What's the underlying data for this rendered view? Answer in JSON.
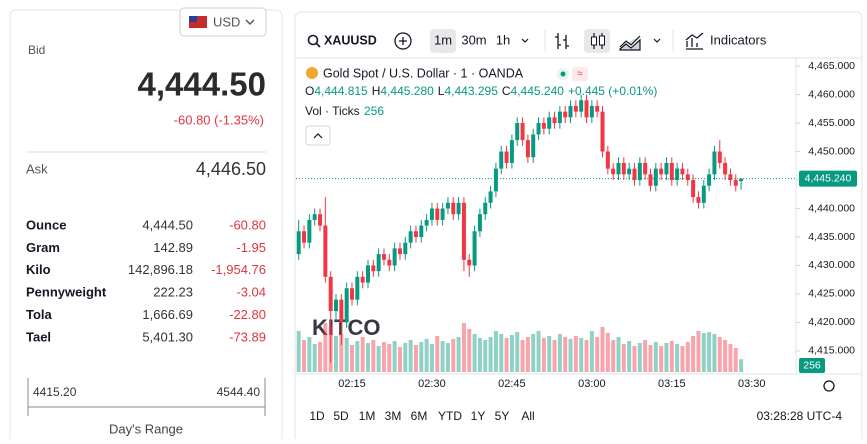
{
  "currency": "USD",
  "bid": {
    "label": "Bid",
    "price": "4,444.50",
    "change": "-60.80 (-1.35%)"
  },
  "ask": {
    "label": "Ask",
    "price": "4,446.50"
  },
  "units": [
    [
      "Ounce",
      "4,444.50",
      "-60.80"
    ],
    [
      "Gram",
      "142.89",
      "-1.95"
    ],
    [
      "Kilo",
      "142,896.18",
      "-1,954.76"
    ],
    [
      "Pennyweight",
      "222.23",
      "-3.04"
    ],
    [
      "Tola",
      "1,666.69",
      "-22.80"
    ],
    [
      "Tael",
      "5,401.30",
      "-73.89"
    ]
  ],
  "day_range": {
    "low": "4415.20",
    "high": "4544.40",
    "label": "Day's Range"
  },
  "toolbar": {
    "symbol": "XAUUSD",
    "intervals": [
      "1m",
      "30m",
      "1h"
    ],
    "indicators": "Indicators"
  },
  "ranges": [
    "1D",
    "5D",
    "1M",
    "3M",
    "6M",
    "YTD",
    "1Y",
    "5Y",
    "All"
  ],
  "clock": "03:28:28 UTC-4",
  "chart_data": {
    "type": "candlestick",
    "title": "Gold Spot / U.S. Dollar · 1 · OANDA",
    "ohlc_labels": [
      [
        "O",
        "4,444.815"
      ],
      [
        "H",
        "4,445.280"
      ],
      [
        "L",
        "4,443.295"
      ],
      [
        "C",
        "4,445.240"
      ]
    ],
    "change": "+0.445 (+0.01%)",
    "volume_title": "Vol · Ticks",
    "watermark": "KITCO",
    "up_color": "#089981",
    "down_color": "#f23645",
    "open": [
      4432,
      4436,
      4434,
      4438,
      4439,
      4437,
      4428,
      4422,
      4424,
      4420,
      4426,
      4424,
      4428,
      4427,
      4430,
      4429,
      4432,
      4431,
      4430,
      4433,
      4432,
      4434,
      4436,
      4435,
      4437,
      4438,
      4440,
      4438,
      4440,
      4441,
      4439,
      4441,
      4431,
      4430,
      4436,
      4439,
      4441,
      4443,
      4447,
      4450,
      4448,
      4452,
      4455,
      4452,
      4449,
      4453,
      4455,
      4454,
      4456,
      4455,
      4457,
      4456,
      4458,
      4457,
      4459,
      4456,
      4458,
      4457,
      4450,
      4447,
      4446,
      4448,
      4446,
      4447,
      4445,
      4448,
      4446,
      4444,
      4447,
      4446,
      4448,
      4445,
      4447,
      4446,
      4445,
      4442,
      4441,
      4444,
      4446,
      4450,
      4448,
      4446,
      4445,
      4444.815
    ],
    "high": [
      4438,
      4437,
      4439,
      4440,
      4440,
      4442,
      4429,
      4425,
      4425,
      4427,
      4427,
      4429,
      4429,
      4431,
      4431,
      4433,
      4433,
      4432,
      4434,
      4434,
      4435,
      4437,
      4437,
      4438,
      4439,
      4441,
      4441,
      4441,
      4442,
      4442,
      4442,
      4442,
      4432,
      4437,
      4440,
      4442,
      4444,
      4448,
      4451,
      4451,
      4453,
      4456,
      4456,
      4453,
      4454,
      4456,
      4456,
      4457,
      4457,
      4458,
      4458,
      4459,
      4459,
      4460,
      4460,
      4459,
      4459,
      4458,
      4451,
      4448,
      4449,
      4449,
      4448,
      4448,
      4449,
      4449,
      4447,
      4448,
      4448,
      4449,
      4449,
      4448,
      4448,
      4447,
      4446,
      4443,
      4445,
      4447,
      4451,
      4452,
      4449,
      4447,
      4446,
      4445.28
    ],
    "low": [
      4431,
      4433,
      4433,
      4437,
      4436,
      4427,
      4413,
      4420,
      4416,
      4419,
      4423,
      4423,
      4426,
      4426,
      4428,
      4428,
      4430,
      4429,
      4429,
      4431,
      4431,
      4433,
      4434,
      4434,
      4436,
      4437,
      4437,
      4437,
      4439,
      4438,
      4438,
      4429,
      4428,
      4429,
      4435,
      4438,
      4440,
      4442,
      4446,
      4447,
      4447,
      4451,
      4451,
      4448,
      4448,
      4452,
      4453,
      4453,
      4454,
      4454,
      4455,
      4455,
      4456,
      4456,
      4455,
      4455,
      4456,
      4449,
      4446,
      4445,
      4445,
      4445,
      4445,
      4444,
      4444,
      4445,
      4443,
      4443,
      4445,
      4445,
      4444,
      4444,
      4445,
      4444,
      4441,
      4440,
      4440,
      4443,
      4445,
      4447,
      4445,
      4444,
      4443,
      4443.295
    ],
    "close": [
      4436,
      4434,
      4438,
      4439,
      4437,
      4428,
      4422,
      4424,
      4420,
      4426,
      4424,
      4428,
      4427,
      4430,
      4429,
      4432,
      4431,
      4430,
      4433,
      4432,
      4434,
      4436,
      4435,
      4437,
      4438,
      4440,
      4438,
      4440,
      4441,
      4439,
      4441,
      4431,
      4430,
      4436,
      4439,
      4441,
      4443,
      4447,
      4450,
      4448,
      4452,
      4455,
      4452,
      4449,
      4453,
      4455,
      4454,
      4456,
      4455,
      4457,
      4456,
      4458,
      4457,
      4459,
      4456,
      4458,
      4457,
      4450,
      4447,
      4446,
      4448,
      4446,
      4447,
      4445,
      4448,
      4446,
      4444,
      4447,
      4446,
      4448,
      4445,
      4447,
      4446,
      4445,
      4442,
      4441,
      4444,
      4446,
      4450,
      4448,
      4446,
      4445,
      4444,
      4445.24
    ],
    "volume": [
      820,
      640,
      700,
      560,
      600,
      980,
      900,
      720,
      760,
      680,
      540,
      620,
      700,
      580,
      640,
      520,
      600,
      560,
      620,
      500,
      580,
      640,
      540,
      600,
      660,
      560,
      720,
      620,
      580,
      660,
      700,
      980,
      860,
      760,
      680,
      640,
      700,
      820,
      760,
      680,
      740,
      800,
      640,
      700,
      760,
      820,
      680,
      720,
      640,
      760,
      700,
      660,
      720,
      680,
      640,
      820,
      700,
      900,
      780,
      640,
      700,
      560,
      620,
      520,
      580,
      640,
      540,
      600,
      520,
      580,
      620,
      560,
      520,
      600,
      720,
      820,
      780,
      800,
      760,
      700,
      640,
      560,
      480,
      256
    ],
    "ylim": [
      4411.3,
      4468.7
    ],
    "yticks": [
      {
        "value": 4415,
        "label": "4,415.000"
      },
      {
        "value": 4420,
        "label": "4,420.000"
      },
      {
        "value": 4425,
        "label": "4,425.000"
      },
      {
        "value": 4430,
        "label": "4,430.000"
      },
      {
        "value": 4435,
        "label": "4,435.000"
      },
      {
        "value": 4440,
        "label": "4,440.000"
      },
      {
        "value": 4445,
        "label": "4,445.000"
      },
      {
        "value": 4450,
        "label": "4,450.000"
      },
      {
        "value": 4455,
        "label": "4,455.000"
      },
      {
        "value": 4460,
        "label": "4,460.000"
      },
      {
        "value": 4465,
        "label": "4,465.000"
      }
    ],
    "xticks": [
      {
        "value": 10,
        "label": "02:15"
      },
      {
        "value": 25,
        "label": "02:30"
      },
      {
        "value": 40,
        "label": "02:45"
      },
      {
        "value": 55,
        "label": "03:00"
      },
      {
        "value": 70,
        "label": "03:15"
      },
      {
        "value": 85,
        "label": "03:30"
      }
    ],
    "price_tag": {
      "value": 4445.24,
      "label": "4,445.240"
    }
  }
}
